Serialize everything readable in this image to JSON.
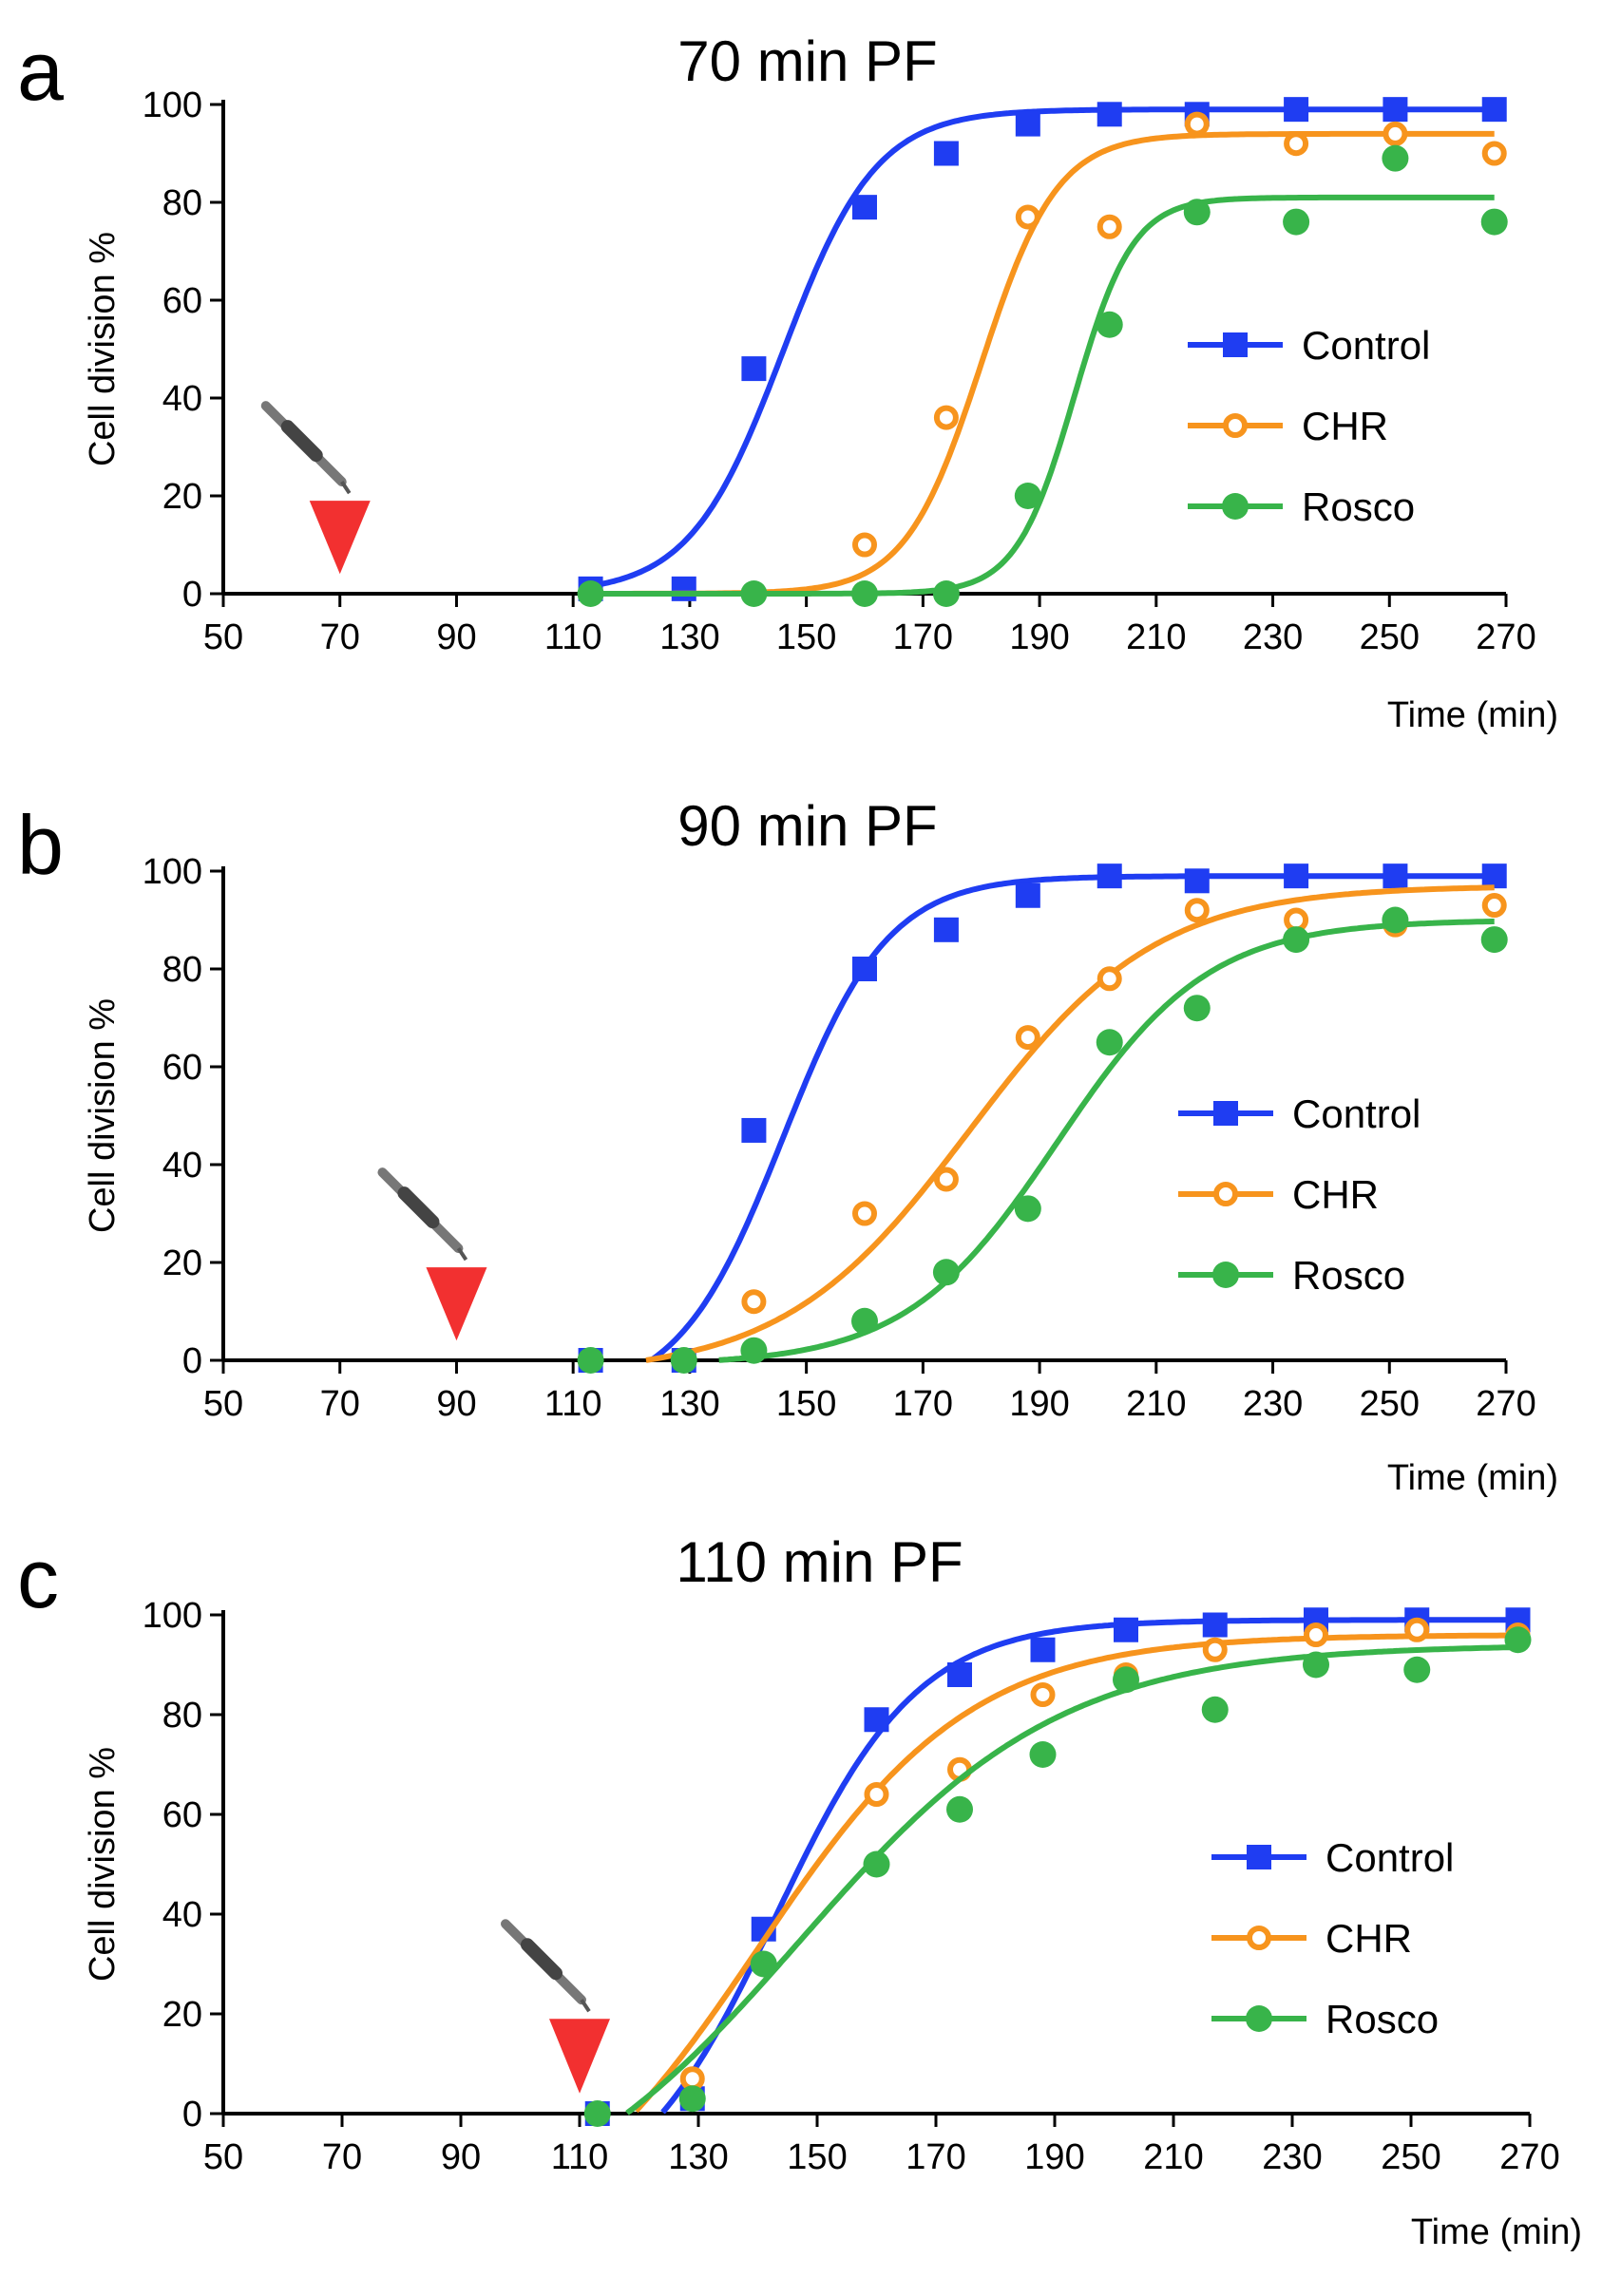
{
  "colors": {
    "control": "#1f3df2",
    "chr": "#f7941d",
    "rosco": "#38b44a",
    "marker": "#f23030",
    "pipette": "#777777"
  },
  "chart_data": [
    {
      "type": "line",
      "panel_label": "a",
      "title": "70 min PF",
      "xlabel": "Time (min)",
      "ylabel": "Cell division %",
      "xlim": [
        50,
        270
      ],
      "ylim": [
        0,
        100
      ],
      "xticks": [
        50,
        70,
        90,
        110,
        130,
        150,
        170,
        190,
        210,
        230,
        250,
        270
      ],
      "yticks": [
        0,
        20,
        40,
        60,
        80,
        100
      ],
      "legend_position": "middle-right",
      "treatment_time": 70,
      "series": [
        {
          "name": "Control",
          "marker": "filled-square",
          "points": [
            [
              113,
              1
            ],
            [
              129,
              1
            ],
            [
              141,
              46
            ],
            [
              160,
              79
            ],
            [
              174,
              90
            ],
            [
              188,
              96
            ],
            [
              202,
              98
            ],
            [
              217,
              98
            ],
            [
              234,
              99
            ],
            [
              251,
              99
            ],
            [
              268,
              99
            ]
          ],
          "fit": {
            "bottom": 0,
            "top": 99,
            "x50": 146,
            "slope": 8
          }
        },
        {
          "name": "CHR",
          "marker": "open-circle",
          "points": [
            [
              113,
              0
            ],
            [
              141,
              0
            ],
            [
              160,
              10
            ],
            [
              174,
              36
            ],
            [
              188,
              77
            ],
            [
              202,
              75
            ],
            [
              217,
              96
            ],
            [
              234,
              92
            ],
            [
              251,
              94
            ],
            [
              268,
              90
            ]
          ],
          "fit": {
            "bottom": 0,
            "top": 94,
            "x50": 180,
            "slope": 6.5
          }
        },
        {
          "name": "Rosco",
          "marker": "filled-circle",
          "points": [
            [
              113,
              0
            ],
            [
              141,
              0
            ],
            [
              160,
              0
            ],
            [
              174,
              0
            ],
            [
              188,
              20
            ],
            [
              202,
              55
            ],
            [
              217,
              78
            ],
            [
              234,
              76
            ],
            [
              251,
              89
            ],
            [
              268,
              76
            ]
          ],
          "fit": {
            "bottom": 0,
            "top": 81,
            "x50": 196,
            "slope": 5
          }
        }
      ]
    },
    {
      "type": "line",
      "panel_label": "b",
      "title": "90 min PF",
      "xlabel": "Time (min)",
      "ylabel": "Cell division %",
      "xlim": [
        50,
        270
      ],
      "ylim": [
        0,
        100
      ],
      "xticks": [
        50,
        70,
        90,
        110,
        130,
        150,
        170,
        190,
        210,
        230,
        250,
        270
      ],
      "yticks": [
        0,
        20,
        40,
        60,
        80,
        100
      ],
      "legend_position": "middle-right",
      "treatment_time": 90,
      "series": [
        {
          "name": "Control",
          "marker": "filled-square",
          "points": [
            [
              113,
              0
            ],
            [
              129,
              0
            ],
            [
              141,
              47
            ],
            [
              160,
              80
            ],
            [
              174,
              88
            ],
            [
              188,
              95
            ],
            [
              202,
              99
            ],
            [
              217,
              98
            ],
            [
              234,
              99
            ],
            [
              251,
              99
            ],
            [
              268,
              99
            ]
          ],
          "fit": {
            "bottom": -8,
            "top": 99,
            "x50": 146,
            "slope": 9
          }
        },
        {
          "name": "CHR",
          "marker": "open-circle",
          "points": [
            [
              113,
              0
            ],
            [
              129,
              0
            ],
            [
              141,
              12
            ],
            [
              160,
              30
            ],
            [
              174,
              37
            ],
            [
              188,
              66
            ],
            [
              202,
              78
            ],
            [
              217,
              92
            ],
            [
              234,
              90
            ],
            [
              251,
              89
            ],
            [
              268,
              93
            ]
          ],
          "fit": {
            "bottom": -3,
            "top": 97,
            "x50": 178,
            "slope": 16
          }
        },
        {
          "name": "Rosco",
          "marker": "filled-circle",
          "points": [
            [
              113,
              0
            ],
            [
              129,
              0
            ],
            [
              141,
              2
            ],
            [
              160,
              8
            ],
            [
              174,
              18
            ],
            [
              188,
              31
            ],
            [
              202,
              65
            ],
            [
              217,
              72
            ],
            [
              234,
              86
            ],
            [
              251,
              90
            ],
            [
              268,
              86
            ]
          ],
          "fit": {
            "bottom": -1,
            "top": 90,
            "x50": 193,
            "slope": 13
          }
        }
      ]
    },
    {
      "type": "line",
      "panel_label": "c",
      "title": "110 min PF",
      "xlabel": "Time (min)",
      "ylabel": "Cell division %",
      "xlim": [
        50,
        270
      ],
      "ylim": [
        0,
        100
      ],
      "xticks": [
        50,
        70,
        90,
        110,
        130,
        150,
        170,
        190,
        210,
        230,
        250,
        270
      ],
      "yticks": [
        0,
        20,
        40,
        60,
        80,
        100
      ],
      "legend_position": "middle-right",
      "treatment_time": 110,
      "series": [
        {
          "name": "Control",
          "marker": "filled-square",
          "points": [
            [
              113,
              0
            ],
            [
              129,
              3
            ],
            [
              141,
              37
            ],
            [
              160,
              79
            ],
            [
              174,
              88
            ],
            [
              188,
              93
            ],
            [
              202,
              97
            ],
            [
              217,
              98
            ],
            [
              234,
              99
            ],
            [
              251,
              99
            ],
            [
              268,
              99
            ]
          ],
          "fit": {
            "bottom": -20,
            "top": 99,
            "x50": 143,
            "slope": 12
          }
        },
        {
          "name": "CHR",
          "marker": "open-circle",
          "points": [
            [
              113,
              0
            ],
            [
              129,
              7
            ],
            [
              141,
              30
            ],
            [
              160,
              64
            ],
            [
              174,
              69
            ],
            [
              188,
              84
            ],
            [
              202,
              88
            ],
            [
              217,
              93
            ],
            [
              234,
              96
            ],
            [
              251,
              97
            ],
            [
              268,
              96
            ]
          ],
          "fit": {
            "bottom": -30,
            "top": 96,
            "x50": 140,
            "slope": 18
          }
        },
        {
          "name": "Rosco",
          "marker": "filled-circle",
          "points": [
            [
              113,
              0
            ],
            [
              129,
              3
            ],
            [
              141,
              30
            ],
            [
              160,
              50
            ],
            [
              174,
              61
            ],
            [
              188,
              72
            ],
            [
              202,
              87
            ],
            [
              217,
              81
            ],
            [
              234,
              90
            ],
            [
              251,
              89
            ],
            [
              268,
              95
            ]
          ],
          "fit": {
            "bottom": -25,
            "top": 94,
            "x50": 147,
            "slope": 22
          }
        }
      ]
    }
  ]
}
